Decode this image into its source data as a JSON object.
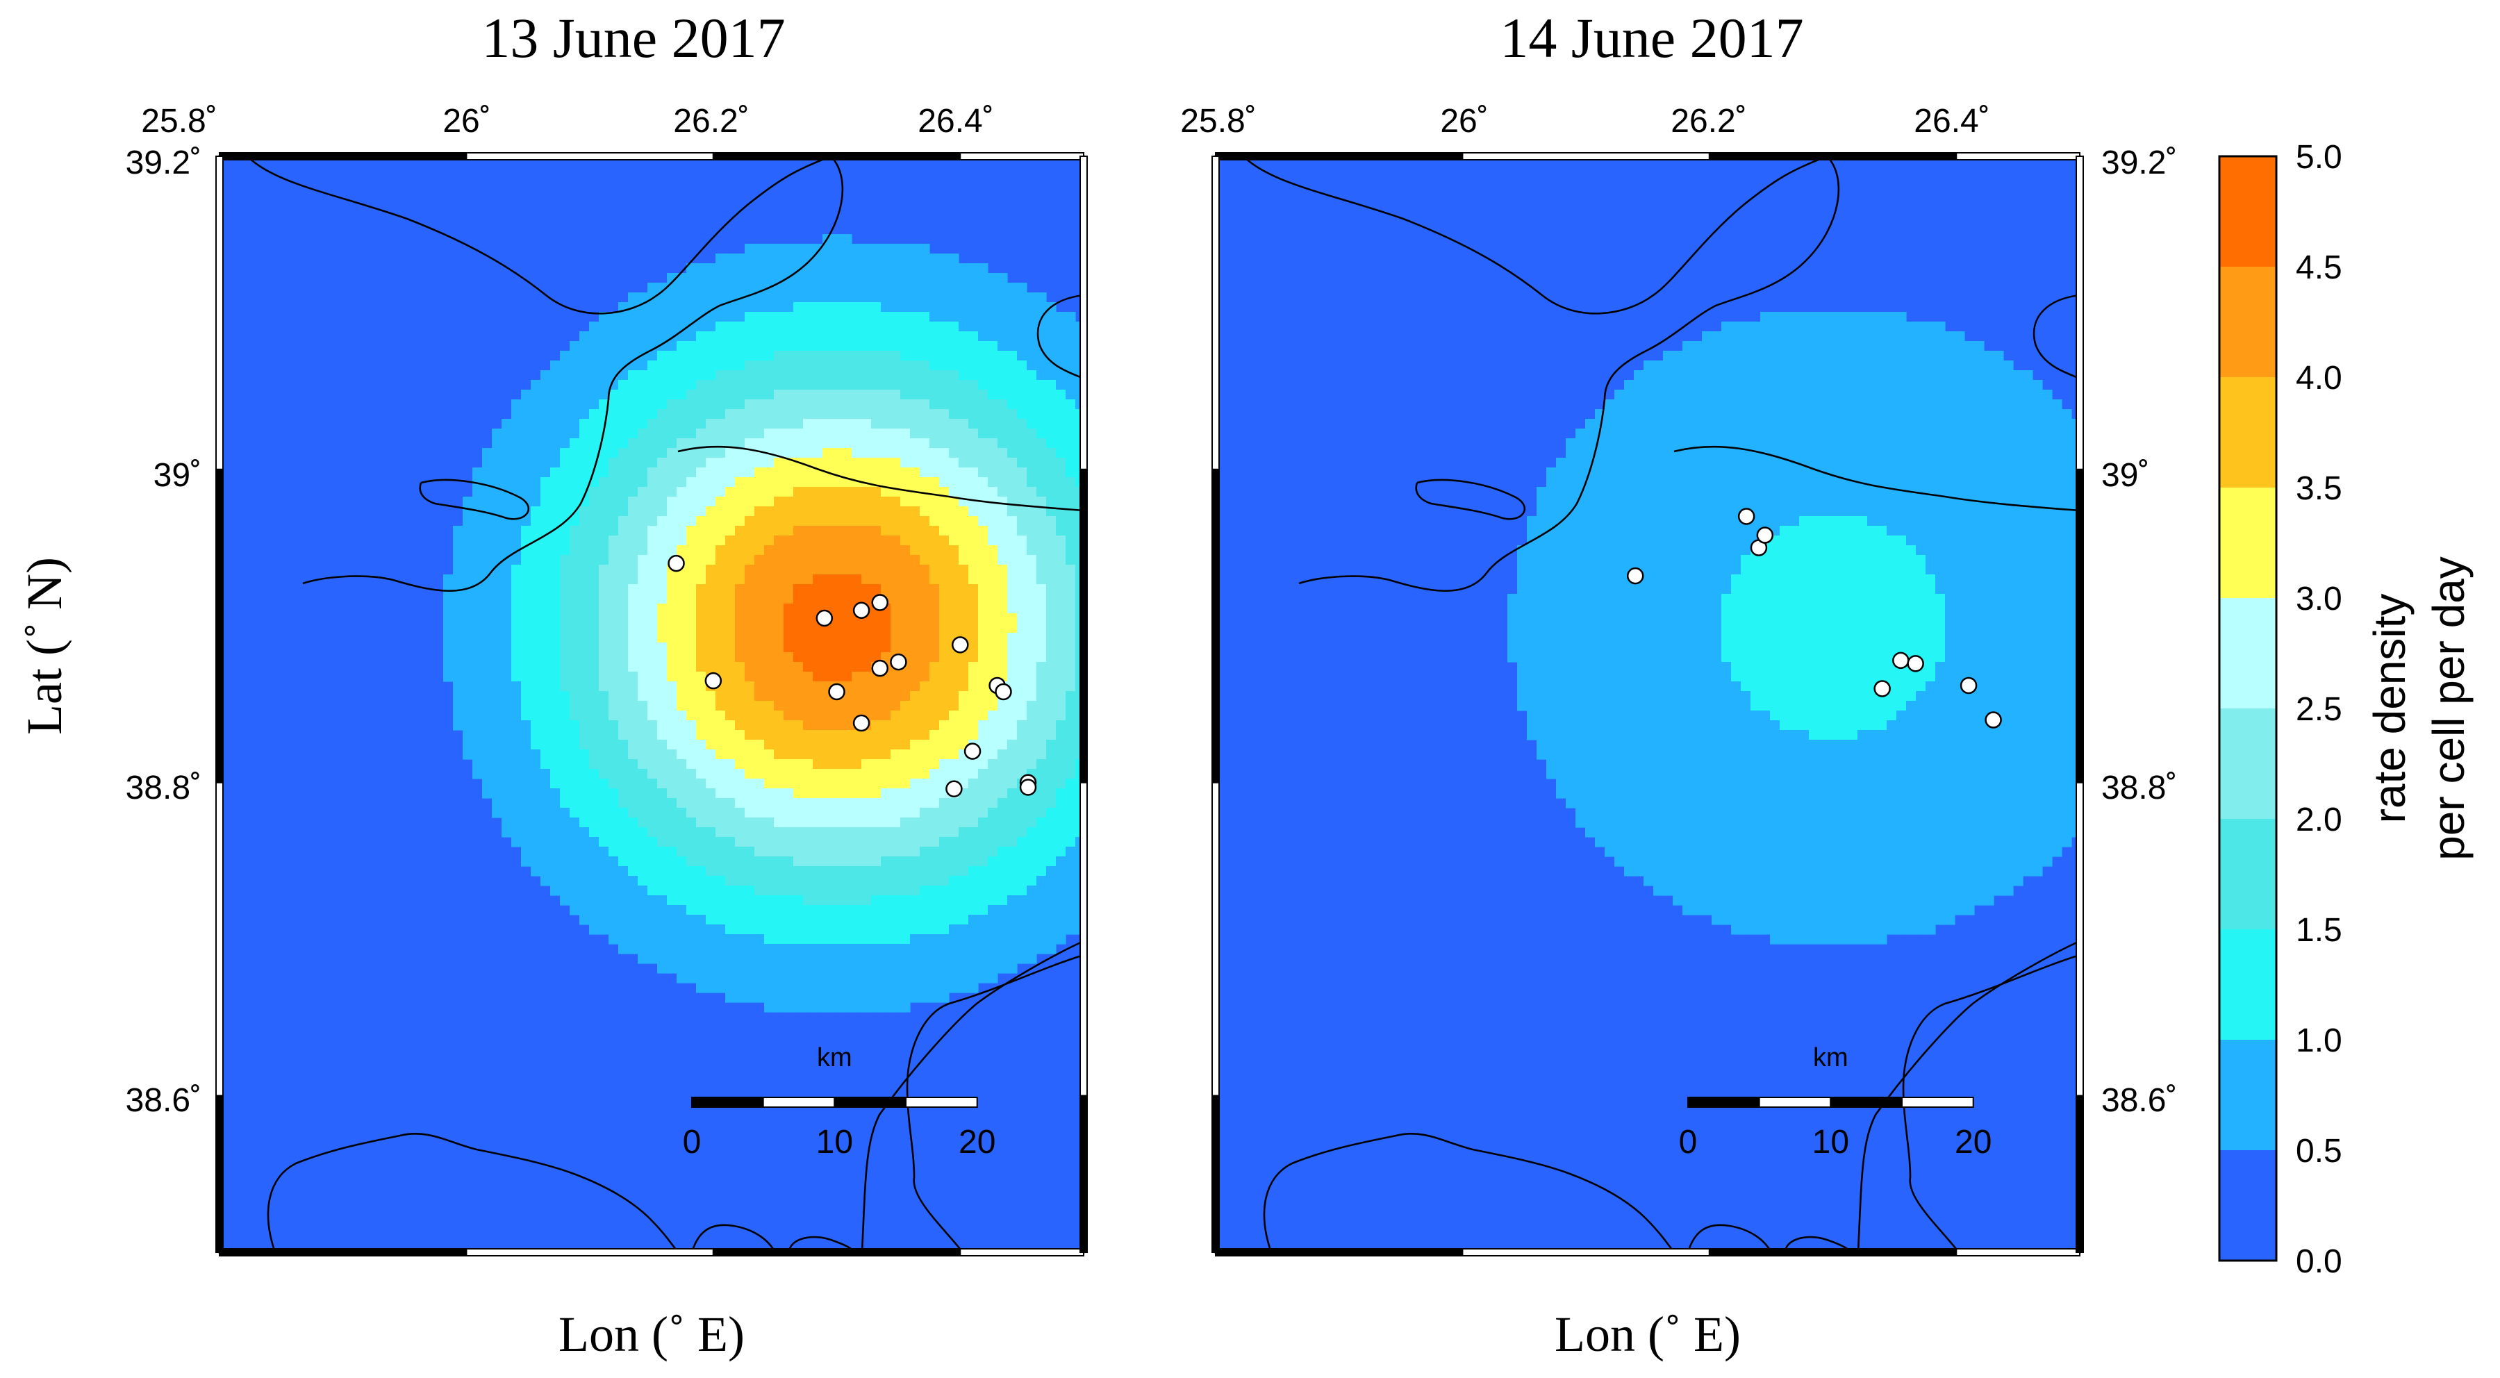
{
  "panels": [
    {
      "title": "13 June 2017",
      "events": [
        [
          26.17,
          38.94
        ],
        [
          26.2,
          38.865
        ],
        [
          26.29,
          38.905
        ],
        [
          26.32,
          38.91
        ],
        [
          26.335,
          38.915
        ],
        [
          26.3,
          38.858
        ],
        [
          26.335,
          38.873
        ],
        [
          26.35,
          38.877
        ],
        [
          26.32,
          38.838
        ],
        [
          26.4,
          38.888
        ],
        [
          26.43,
          38.862
        ],
        [
          26.435,
          38.858
        ],
        [
          26.41,
          38.82
        ],
        [
          26.395,
          38.796
        ],
        [
          26.455,
          38.8
        ],
        [
          26.455,
          38.797
        ]
      ],
      "hotspots": [
        {
          "lon": 26.3,
          "lat": 38.9,
          "peak": 4.7,
          "sigma_km": 13
        }
      ]
    },
    {
      "title": "14 June 2017",
      "events": [
        [
          26.14,
          38.932
        ],
        [
          26.23,
          38.97
        ],
        [
          26.24,
          38.95
        ],
        [
          26.245,
          38.958
        ],
        [
          26.34,
          38.86
        ],
        [
          26.355,
          38.878
        ],
        [
          26.367,
          38.876
        ],
        [
          26.41,
          38.862
        ],
        [
          26.43,
          38.84
        ]
      ],
      "hotspots": [
        {
          "lon": 26.3,
          "lat": 38.9,
          "peak": 1.1,
          "sigma_km": 18
        }
      ]
    }
  ],
  "axes": {
    "xlabel": "Lon (˚ E)",
    "ylabel": "Lat (˚ N)",
    "lon_range": [
      25.8,
      26.5
    ],
    "lat_range": [
      38.5,
      39.2
    ],
    "lon_ticks": [
      {
        "value": 25.8,
        "label": "25.8˚"
      },
      {
        "value": 26.0,
        "label": "26˚"
      },
      {
        "value": 26.2,
        "label": "26.2˚"
      },
      {
        "value": 26.4,
        "label": "26.4˚"
      }
    ],
    "lat_ticks": [
      {
        "value": 39.2,
        "label": "39.2˚"
      },
      {
        "value": 39.0,
        "label": "39˚"
      },
      {
        "value": 38.8,
        "label": "38.8˚"
      },
      {
        "value": 38.6,
        "label": "38.6˚"
      }
    ]
  },
  "scale_bar": {
    "unit": "km",
    "labels": [
      "0",
      "10",
      "20"
    ],
    "length_km": 20
  },
  "colorbar": {
    "title_line1": "rate density",
    "title_line2": "per cell per day",
    "range": [
      0.0,
      5.0
    ],
    "levels": [
      0.0,
      0.5,
      1.0,
      1.5,
      2.0,
      2.5,
      3.0,
      3.5,
      4.0,
      4.5,
      5.0
    ],
    "tick_labels": [
      "0.0",
      "0.5",
      "1.0",
      "1.5",
      "2.0",
      "2.5",
      "3.0",
      "3.5",
      "4.0",
      "4.5",
      "5.0"
    ],
    "colors": [
      "#2a64ff",
      "#23b2ff",
      "#26f5f5",
      "#4ee7e7",
      "#82eded",
      "#b8ffff",
      "#ffff55",
      "#ffc31e",
      "#ff9b14",
      "#ff6e00"
    ]
  },
  "coastline_color": "#000000"
}
